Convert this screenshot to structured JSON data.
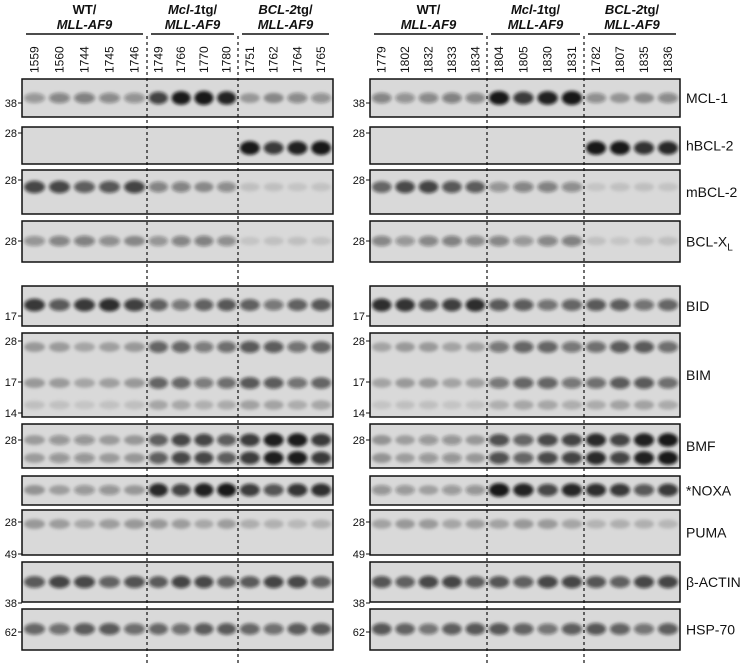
{
  "panels": [
    {
      "groups": [
        {
          "line1": [
            {
              "text": "WT/"
            }
          ],
          "line2": {
            "text": "MLL-AF9",
            "italic": true
          },
          "lanes": [
            "1559",
            "1560",
            "1744",
            "1745",
            "1746"
          ]
        },
        {
          "line1": [
            {
              "text": "Mcl-1",
              "italic": true
            },
            {
              "text": "tg/"
            }
          ],
          "line2": {
            "text": "MLL-AF9",
            "italic": true
          },
          "lanes": [
            "1749",
            "1766",
            "1770",
            "1780"
          ]
        },
        {
          "line1": [
            {
              "text": "BCL-2",
              "italic": true
            },
            {
              "text": "tg/"
            }
          ],
          "line2": {
            "text": "MLL-AF9",
            "italic": true
          },
          "lanes": [
            "1751",
            "1762",
            "1764",
            "1765"
          ]
        }
      ],
      "markers": [
        [
          "38"
        ],
        [
          "28"
        ],
        [
          "28"
        ],
        [
          "28"
        ],
        [
          "17"
        ],
        [
          "28",
          "17",
          "14"
        ],
        [
          "28"
        ],
        [],
        [
          "28"
        ],
        [
          "49",
          "38"
        ],
        [
          "62"
        ]
      ]
    },
    {
      "groups": [
        {
          "line1": [
            {
              "text": "WT/"
            }
          ],
          "line2": {
            "text": "MLL-AF9",
            "italic": true
          },
          "lanes": [
            "1779",
            "1802",
            "1832",
            "1833",
            "1834"
          ]
        },
        {
          "line1": [
            {
              "text": "Mcl-1",
              "italic": true
            },
            {
              "text": "tg/"
            }
          ],
          "line2": {
            "text": "MLL-AF9",
            "italic": true
          },
          "lanes": [
            "1804",
            "1805",
            "1830",
            "1831"
          ]
        },
        {
          "line1": [
            {
              "text": "BCL-2",
              "italic": true
            },
            {
              "text": "tg/"
            }
          ],
          "line2": {
            "text": "MLL-AF9",
            "italic": true
          },
          "lanes": [
            "1782",
            "1807",
            "1835",
            "1836"
          ]
        }
      ],
      "markers": [
        [
          "38"
        ],
        [
          "28"
        ],
        [
          "28"
        ],
        [
          "28"
        ],
        [
          "17"
        ],
        [
          "28",
          "17",
          "14"
        ],
        [
          "28"
        ],
        [],
        [
          "28"
        ],
        [
          "49",
          "38"
        ],
        [
          "62"
        ]
      ]
    }
  ],
  "rows": [
    {
      "label": "MCL-1"
    },
    {
      "label": "hBCL-2"
    },
    {
      "label": "mBCL-2"
    },
    {
      "label": "BCL-X",
      "sub": "L"
    },
    {
      "label": "BID"
    },
    {
      "label": "BIM"
    },
    {
      "label": "BMF"
    },
    {
      "label": "*NOXA"
    },
    {
      "label": "PUMA"
    },
    {
      "label": "β-ACTIN"
    },
    {
      "label": "HSP-70"
    }
  ]
}
